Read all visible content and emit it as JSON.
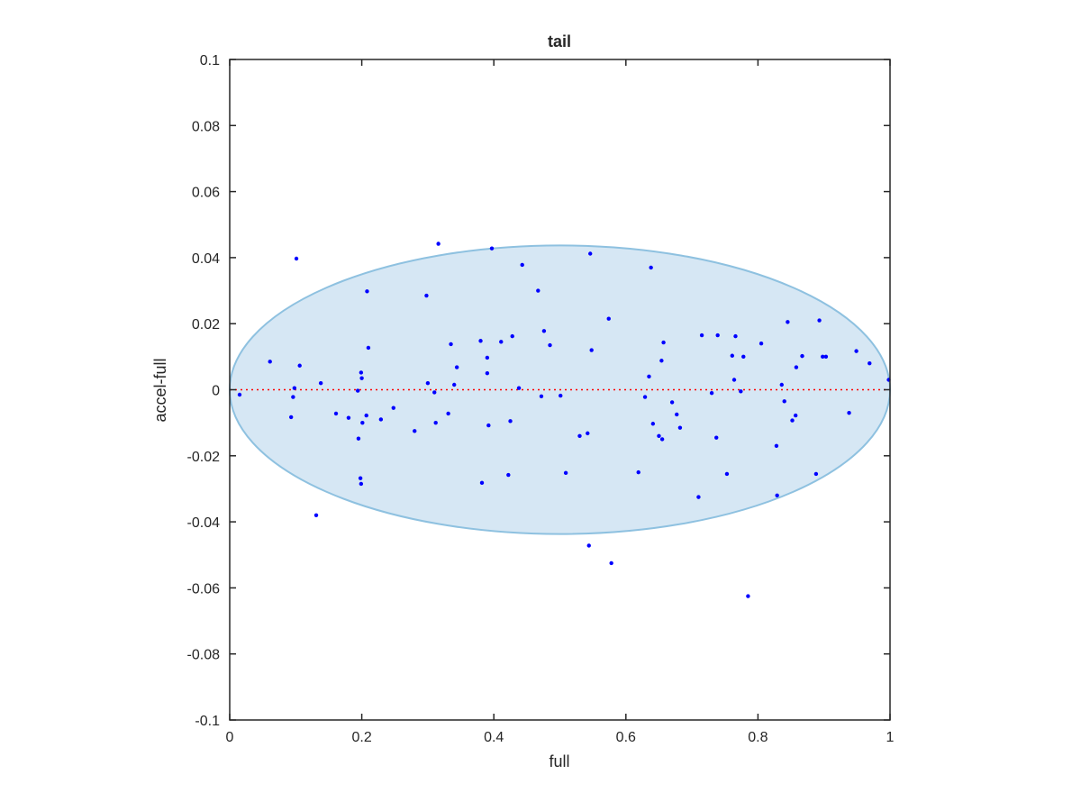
{
  "chart_data": {
    "type": "scatter",
    "title": "tail",
    "xlabel": "full",
    "ylabel": "accel-full",
    "xlim": [
      0,
      1
    ],
    "ylim": [
      -0.1,
      0.1
    ],
    "xticks": [
      0,
      0.2,
      0.4,
      0.6,
      0.8,
      1
    ],
    "xtick_labels": [
      "0",
      "0.2",
      "0.4",
      "0.6",
      "0.8",
      "1"
    ],
    "yticks": [
      0.1,
      0.08,
      0.06,
      0.04,
      0.02,
      0,
      -0.02,
      -0.04,
      -0.06,
      -0.08,
      -0.1
    ],
    "ytick_labels": [
      "0.1",
      "0.08",
      "0.06",
      "0.04",
      "0.02",
      "0",
      "-0.02",
      "-0.04",
      "-0.06",
      "-0.08",
      "-0.1"
    ],
    "grid": false,
    "legend": "none",
    "reference_line": {
      "y": 0,
      "style": "dotted",
      "color": "#ff0000"
    },
    "ellipse": {
      "cx": 0.5,
      "cy": 0,
      "rx": 0.5,
      "ry": 0.0437,
      "fill": "#d6e7f4",
      "stroke": "#8ec1e0"
    },
    "marker_color": "#0000ff",
    "points": [
      [
        0.015,
        -0.0015
      ],
      [
        0.061,
        0.0085
      ],
      [
        0.093,
        -0.0083
      ],
      [
        0.096,
        -0.0022
      ],
      [
        0.098,
        0.0005
      ],
      [
        0.101,
        0.0397
      ],
      [
        0.106,
        0.0073
      ],
      [
        0.131,
        -0.038
      ],
      [
        0.138,
        0.002
      ],
      [
        0.161,
        -0.0072
      ],
      [
        0.18,
        -0.0085
      ],
      [
        0.194,
        -0.0003
      ],
      [
        0.195,
        -0.0148
      ],
      [
        0.198,
        -0.0268
      ],
      [
        0.199,
        -0.0285
      ],
      [
        0.199,
        0.0052
      ],
      [
        0.2,
        0.0035
      ],
      [
        0.201,
        -0.01
      ],
      [
        0.207,
        -0.0078
      ],
      [
        0.208,
        0.0298
      ],
      [
        0.21,
        0.0127
      ],
      [
        0.229,
        -0.009
      ],
      [
        0.248,
        -0.0055
      ],
      [
        0.28,
        -0.0125
      ],
      [
        0.298,
        0.0285
      ],
      [
        0.3,
        0.002
      ],
      [
        0.31,
        -0.0008
      ],
      [
        0.312,
        -0.01
      ],
      [
        0.316,
        0.0442
      ],
      [
        0.331,
        -0.0072
      ],
      [
        0.335,
        0.0138
      ],
      [
        0.34,
        0.0015
      ],
      [
        0.344,
        0.0068
      ],
      [
        0.38,
        0.0148
      ],
      [
        0.382,
        -0.0282
      ],
      [
        0.39,
        0.005
      ],
      [
        0.39,
        0.0097
      ],
      [
        0.392,
        -0.0108
      ],
      [
        0.397,
        0.0428
      ],
      [
        0.411,
        0.0145
      ],
      [
        0.422,
        -0.0258
      ],
      [
        0.425,
        -0.0095
      ],
      [
        0.428,
        0.0162
      ],
      [
        0.438,
        0.0005
      ],
      [
        0.443,
        0.0378
      ],
      [
        0.467,
        0.03
      ],
      [
        0.472,
        -0.002
      ],
      [
        0.476,
        0.0178
      ],
      [
        0.485,
        0.0135
      ],
      [
        0.501,
        -0.0018
      ],
      [
        0.509,
        -0.0252
      ],
      [
        0.53,
        -0.014
      ],
      [
        0.542,
        -0.0132
      ],
      [
        0.544,
        -0.0472
      ],
      [
        0.546,
        0.0412
      ],
      [
        0.548,
        0.012
      ],
      [
        0.574,
        0.0215
      ],
      [
        0.578,
        -0.0525
      ],
      [
        0.619,
        -0.025
      ],
      [
        0.629,
        -0.0022
      ],
      [
        0.635,
        0.004
      ],
      [
        0.638,
        0.037
      ],
      [
        0.641,
        -0.0103
      ],
      [
        0.65,
        -0.014
      ],
      [
        0.654,
        0.0088
      ],
      [
        0.655,
        -0.015
      ],
      [
        0.657,
        0.0143
      ],
      [
        0.67,
        -0.0038
      ],
      [
        0.677,
        -0.0075
      ],
      [
        0.682,
        -0.0115
      ],
      [
        0.71,
        -0.0325
      ],
      [
        0.715,
        0.0165
      ],
      [
        0.73,
        -0.001
      ],
      [
        0.737,
        -0.0145
      ],
      [
        0.739,
        0.0165
      ],
      [
        0.753,
        -0.0255
      ],
      [
        0.761,
        0.0103
      ],
      [
        0.764,
        0.003
      ],
      [
        0.766,
        0.0162
      ],
      [
        0.774,
        -0.0005
      ],
      [
        0.778,
        0.01
      ],
      [
        0.785,
        -0.0625
      ],
      [
        0.805,
        0.014
      ],
      [
        0.828,
        -0.017
      ],
      [
        0.829,
        -0.032
      ],
      [
        0.836,
        0.0015
      ],
      [
        0.84,
        -0.0035
      ],
      [
        0.845,
        0.0205
      ],
      [
        0.852,
        -0.0093
      ],
      [
        0.857,
        -0.0078
      ],
      [
        0.858,
        0.0068
      ],
      [
        0.867,
        0.0102
      ],
      [
        0.888,
        -0.0255
      ],
      [
        0.893,
        0.021
      ],
      [
        0.898,
        0.01
      ],
      [
        0.903,
        0.01
      ],
      [
        0.938,
        -0.007
      ],
      [
        0.949,
        0.0117
      ],
      [
        0.969,
        0.008
      ],
      [
        0.998,
        0.003
      ]
    ]
  }
}
